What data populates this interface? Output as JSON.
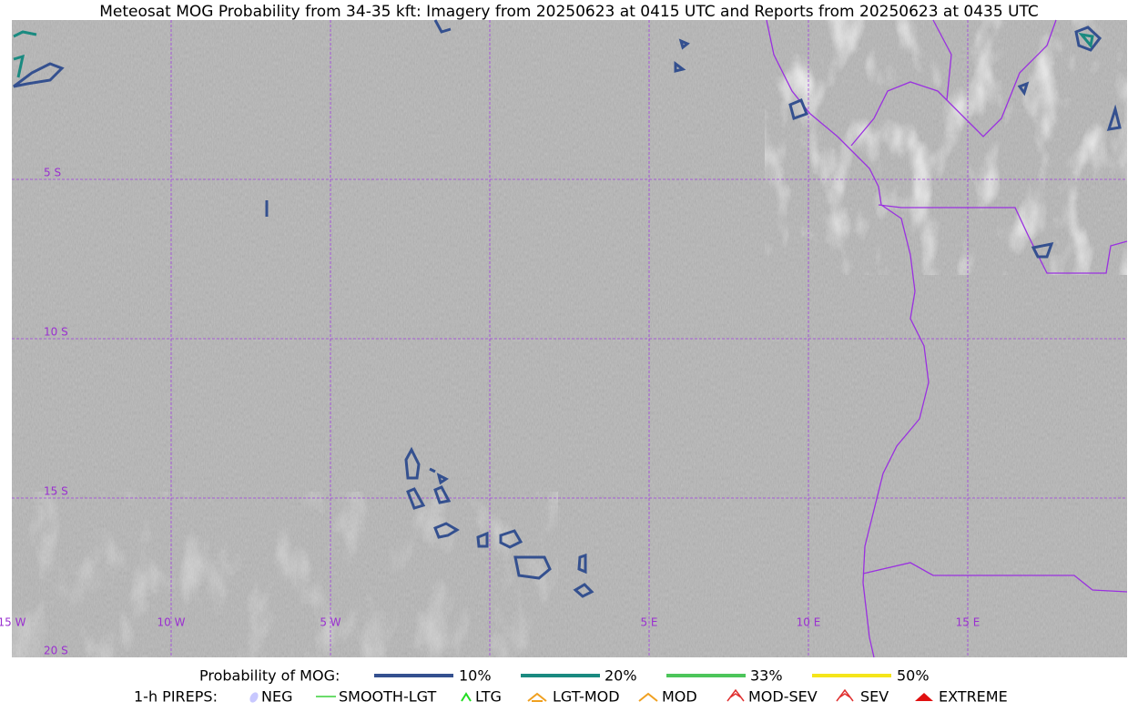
{
  "header": {
    "title": "Meteosat MOG Probability from 34-35 kft: Imagery from 20250623 at 0415 UTC and Reports from 20250623 at 0435 UTC"
  },
  "map": {
    "lat_labels": [
      "5 S",
      "10 S",
      "15 S",
      "20 S"
    ],
    "lon_labels": [
      "15 W",
      "10 W",
      "5 W",
      "5 E",
      "10 E",
      "15 E"
    ]
  },
  "legend": {
    "mog_title": "Probability of MOG:",
    "mog_items": [
      "10%",
      "20%",
      "33%",
      "50%"
    ],
    "pirep_title": "1-h PIREPS:",
    "pirep_items": [
      "NEG",
      "SMOOTH-LGT",
      "LTG",
      "LGT-MOD",
      "MOD",
      "MOD-SEV",
      "SEV",
      "EXTREME"
    ]
  }
}
